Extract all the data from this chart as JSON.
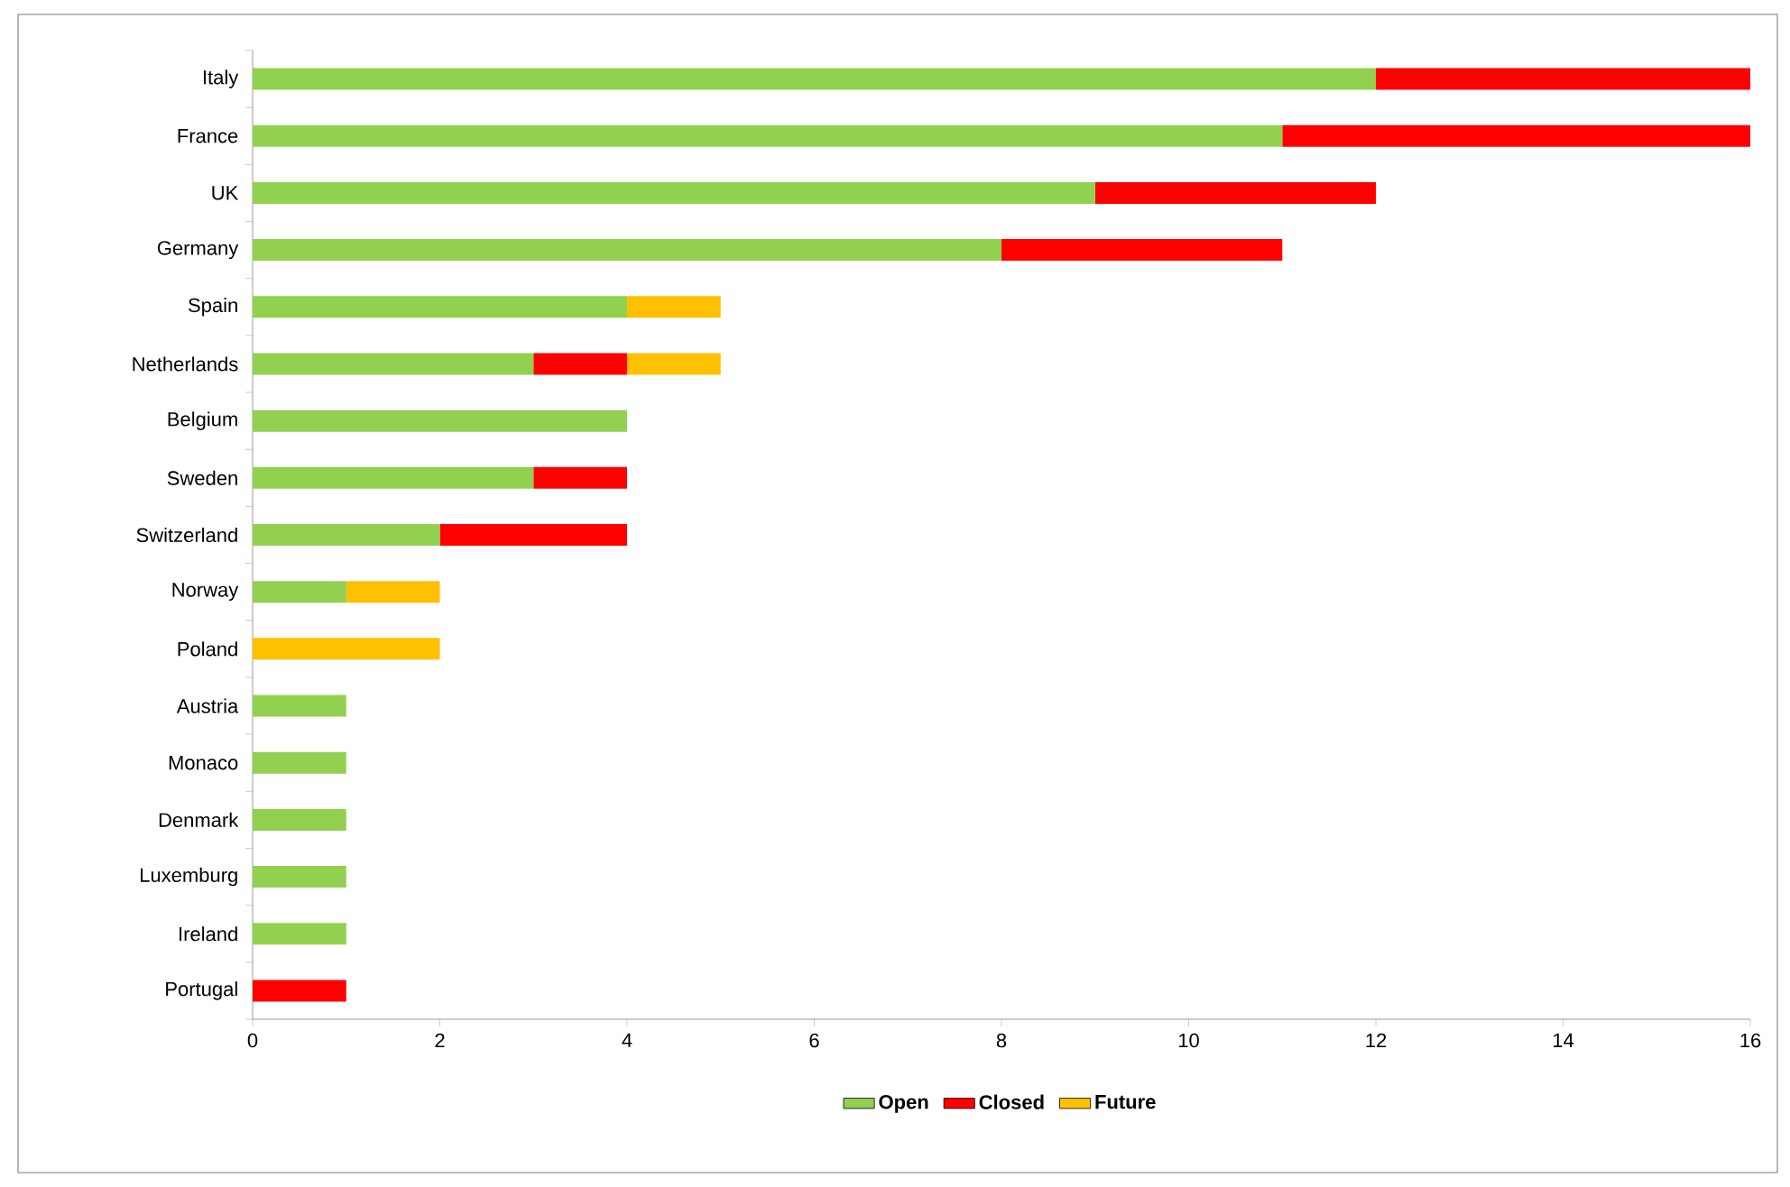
{
  "chart_data": {
    "type": "bar",
    "orientation": "horizontal",
    "stacked": true,
    "categories": [
      "Italy",
      "France",
      "UK",
      "Germany",
      "Spain",
      "Netherlands",
      "Belgium",
      "Sweden",
      "Switzerland",
      "Norway",
      "Poland",
      "Austria",
      "Monaco",
      "Denmark",
      "Luxemburg",
      "Ireland",
      "Portugal"
    ],
    "series": [
      {
        "name": "Open",
        "color": "#92d050",
        "values": [
          12,
          11,
          9,
          8,
          4,
          3,
          4,
          3,
          2,
          1,
          0,
          1,
          1,
          1,
          1,
          1,
          0
        ]
      },
      {
        "name": "Closed",
        "color": "#ff0000",
        "values": [
          4,
          5,
          3,
          3,
          0,
          1,
          0,
          1,
          2,
          0,
          0,
          0,
          0,
          0,
          0,
          0,
          1
        ]
      },
      {
        "name": "Future",
        "color": "#ffc000",
        "values": [
          0,
          0,
          0,
          0,
          1,
          1,
          0,
          0,
          0,
          1,
          2,
          0,
          0,
          0,
          0,
          0,
          0
        ]
      }
    ],
    "xlim": [
      0,
      16
    ],
    "xticks": [
      0,
      2,
      4,
      6,
      8,
      10,
      12,
      14,
      16
    ],
    "grid": false,
    "legend": "bottom"
  }
}
